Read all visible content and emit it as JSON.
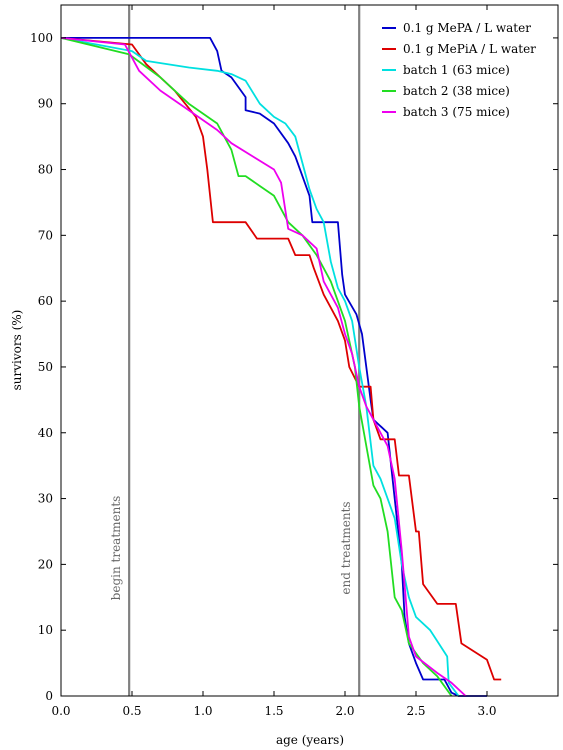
{
  "chart_data": {
    "type": "line",
    "xlabel": "age (years)",
    "ylabel": "survivors (%)",
    "xlim": [
      0,
      3.5
    ],
    "ylim": [
      0,
      105
    ],
    "x_ticks": [
      0.0,
      0.5,
      1.0,
      1.5,
      2.0,
      2.5,
      3.0
    ],
    "x_tick_labels": [
      "0.0",
      "0.5",
      "1.0",
      "1.5",
      "2.0",
      "2.5",
      "3.0"
    ],
    "y_ticks": [
      0,
      10,
      20,
      30,
      40,
      50,
      60,
      70,
      80,
      90,
      100
    ],
    "y_tick_labels": [
      "0",
      "10",
      "20",
      "30",
      "40",
      "50",
      "60",
      "70",
      "80",
      "90",
      "100"
    ],
    "grid": false,
    "legend_position": "top-right",
    "annotations": [
      {
        "text": "begin treatments",
        "x": 0.48,
        "line_color": "#808080"
      },
      {
        "text": "end treatments",
        "x": 2.1,
        "line_color": "#808080"
      }
    ],
    "series": [
      {
        "name": "0.1 g MePA / L water",
        "color": "#0000cc",
        "points": [
          [
            0,
            100
          ],
          [
            1.05,
            100
          ],
          [
            1.1,
            98
          ],
          [
            1.13,
            95
          ],
          [
            1.2,
            94
          ],
          [
            1.3,
            91
          ],
          [
            1.3,
            89
          ],
          [
            1.4,
            88.5
          ],
          [
            1.5,
            87
          ],
          [
            1.6,
            84
          ],
          [
            1.65,
            82
          ],
          [
            1.7,
            79
          ],
          [
            1.75,
            76
          ],
          [
            1.77,
            72
          ],
          [
            1.95,
            72
          ],
          [
            1.98,
            64
          ],
          [
            2.0,
            61
          ],
          [
            2.08,
            58
          ],
          [
            2.12,
            55
          ],
          [
            2.15,
            50
          ],
          [
            2.18,
            45
          ],
          [
            2.2,
            42
          ],
          [
            2.3,
            40
          ],
          [
            2.35,
            30
          ],
          [
            2.4,
            20
          ],
          [
            2.42,
            12
          ],
          [
            2.45,
            8
          ],
          [
            2.5,
            5
          ],
          [
            2.55,
            2.5
          ],
          [
            2.7,
            2.5
          ],
          [
            2.75,
            0.5
          ],
          [
            2.8,
            0
          ],
          [
            3.0,
            0
          ]
        ]
      },
      {
        "name": "0.1 g MePiA / L water",
        "color": "#dd0000",
        "points": [
          [
            0,
            100
          ],
          [
            0.5,
            99
          ],
          [
            0.6,
            96
          ],
          [
            0.8,
            92
          ],
          [
            0.95,
            88
          ],
          [
            1.0,
            85
          ],
          [
            1.03,
            80
          ],
          [
            1.05,
            76
          ],
          [
            1.07,
            72
          ],
          [
            1.3,
            72
          ],
          [
            1.38,
            69.5
          ],
          [
            1.6,
            69.5
          ],
          [
            1.65,
            67
          ],
          [
            1.75,
            67
          ],
          [
            1.78,
            65
          ],
          [
            1.85,
            61
          ],
          [
            1.9,
            59
          ],
          [
            1.95,
            57
          ],
          [
            2.0,
            54
          ],
          [
            2.03,
            50
          ],
          [
            2.1,
            47
          ],
          [
            2.18,
            47
          ],
          [
            2.2,
            42
          ],
          [
            2.25,
            39
          ],
          [
            2.35,
            39
          ],
          [
            2.38,
            33.5
          ],
          [
            2.45,
            33.5
          ],
          [
            2.5,
            25
          ],
          [
            2.52,
            25
          ],
          [
            2.55,
            17
          ],
          [
            2.65,
            14
          ],
          [
            2.78,
            14
          ],
          [
            2.82,
            8
          ],
          [
            3.0,
            5.5
          ],
          [
            3.05,
            2.5
          ],
          [
            3.1,
            2.5
          ]
        ]
      },
      {
        "name": "batch 1 (63 mice)",
        "color": "#00e0e0",
        "points": [
          [
            0,
            100
          ],
          [
            0.5,
            98
          ],
          [
            0.6,
            96.5
          ],
          [
            0.9,
            95.5
          ],
          [
            1.1,
            95
          ],
          [
            1.2,
            94.5
          ],
          [
            1.3,
            93.5
          ],
          [
            1.4,
            90
          ],
          [
            1.5,
            88
          ],
          [
            1.58,
            87
          ],
          [
            1.65,
            85
          ],
          [
            1.7,
            81
          ],
          [
            1.75,
            77
          ],
          [
            1.8,
            74
          ],
          [
            1.85,
            72
          ],
          [
            1.9,
            66
          ],
          [
            1.95,
            62
          ],
          [
            2.0,
            60
          ],
          [
            2.05,
            57
          ],
          [
            2.1,
            50
          ],
          [
            2.15,
            44
          ],
          [
            2.2,
            35
          ],
          [
            2.25,
            33
          ],
          [
            2.3,
            30
          ],
          [
            2.35,
            27
          ],
          [
            2.4,
            20
          ],
          [
            2.45,
            15
          ],
          [
            2.5,
            12
          ],
          [
            2.6,
            10
          ],
          [
            2.72,
            6
          ],
          [
            2.73,
            2
          ],
          [
            2.8,
            0
          ]
        ]
      },
      {
        "name": "batch 2 (38 mice)",
        "color": "#22dd22",
        "points": [
          [
            0,
            100
          ],
          [
            0.48,
            97.5
          ],
          [
            0.7,
            94
          ],
          [
            0.9,
            90
          ],
          [
            1.1,
            87
          ],
          [
            1.2,
            83
          ],
          [
            1.25,
            79
          ],
          [
            1.3,
            79
          ],
          [
            1.4,
            77.5
          ],
          [
            1.5,
            76
          ],
          [
            1.6,
            72
          ],
          [
            1.7,
            70
          ],
          [
            1.8,
            67
          ],
          [
            1.9,
            63
          ],
          [
            2.0,
            57
          ],
          [
            2.07,
            50
          ],
          [
            2.1,
            44
          ],
          [
            2.15,
            38
          ],
          [
            2.2,
            32
          ],
          [
            2.25,
            30
          ],
          [
            2.3,
            25
          ],
          [
            2.35,
            15
          ],
          [
            2.4,
            13
          ],
          [
            2.45,
            8
          ],
          [
            2.55,
            5
          ],
          [
            2.65,
            3
          ],
          [
            2.75,
            0
          ]
        ]
      },
      {
        "name": "batch 3 (75 mice)",
        "color": "#ee00ee",
        "points": [
          [
            0,
            100
          ],
          [
            0.45,
            99
          ],
          [
            0.55,
            95
          ],
          [
            0.7,
            92
          ],
          [
            0.9,
            89
          ],
          [
            1.1,
            86
          ],
          [
            1.2,
            84
          ],
          [
            1.35,
            82
          ],
          [
            1.5,
            80
          ],
          [
            1.55,
            78
          ],
          [
            1.6,
            71
          ],
          [
            1.7,
            70
          ],
          [
            1.8,
            68
          ],
          [
            1.85,
            63
          ],
          [
            1.9,
            61
          ],
          [
            1.95,
            59
          ],
          [
            2.0,
            55
          ],
          [
            2.05,
            52
          ],
          [
            2.1,
            47
          ],
          [
            2.15,
            44
          ],
          [
            2.2,
            42
          ],
          [
            2.25,
            40
          ],
          [
            2.3,
            38
          ],
          [
            2.35,
            33
          ],
          [
            2.4,
            22
          ],
          [
            2.45,
            9
          ],
          [
            2.5,
            6
          ],
          [
            2.65,
            3.5
          ],
          [
            2.75,
            2
          ],
          [
            2.85,
            0
          ]
        ]
      }
    ]
  }
}
